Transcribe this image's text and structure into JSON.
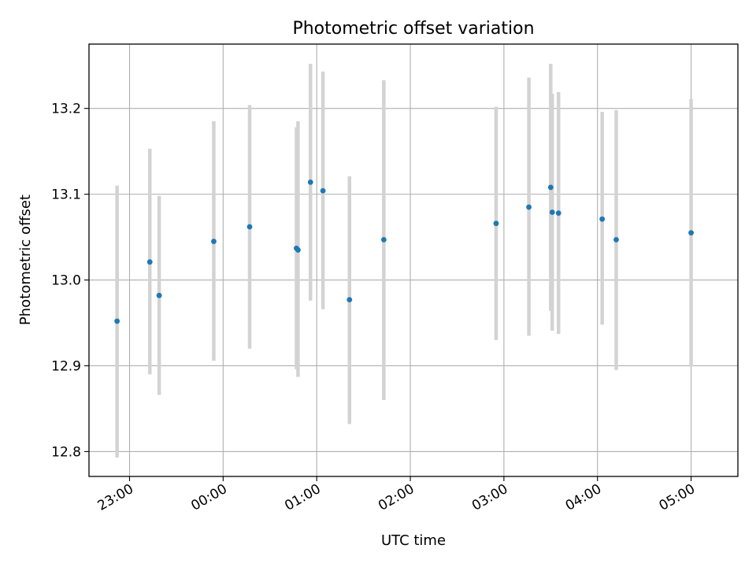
{
  "chart_data": {
    "type": "scatter",
    "title": "Photometric offset variation",
    "xlabel": "UTC time",
    "ylabel": "Photometric offset",
    "xlim": [
      "22:34",
      "05:30"
    ],
    "ylim": [
      12.771,
      13.275
    ],
    "x_ticks": [
      "23:00",
      "00:00",
      "01:00",
      "02:00",
      "03:00",
      "04:00",
      "05:00"
    ],
    "y_ticks": [
      12.8,
      12.9,
      13.0,
      13.1,
      13.2
    ],
    "grid": true,
    "marker_color": "#1f77b4",
    "errorbar_color": "#d3d3d3",
    "points": [
      {
        "time": "22:52",
        "value": 12.952,
        "err_low": 12.793,
        "err_high": 13.11
      },
      {
        "time": "23:13",
        "value": 13.021,
        "err_low": 12.89,
        "err_high": 13.153
      },
      {
        "time": "23:19",
        "value": 12.982,
        "err_low": 12.866,
        "err_high": 13.098
      },
      {
        "time": "23:54",
        "value": 13.045,
        "err_low": 12.906,
        "err_high": 13.185
      },
      {
        "time": "00:17",
        "value": 13.062,
        "err_low": 12.92,
        "err_high": 13.204
      },
      {
        "time": "00:47",
        "value": 13.037,
        "err_low": 12.896,
        "err_high": 13.178
      },
      {
        "time": "00:48",
        "value": 13.035,
        "err_low": 12.887,
        "err_high": 13.185
      },
      {
        "time": "00:56",
        "value": 13.114,
        "err_low": 12.976,
        "err_high": 13.252
      },
      {
        "time": "01:04",
        "value": 13.104,
        "err_low": 12.966,
        "err_high": 13.243
      },
      {
        "time": "01:21",
        "value": 12.977,
        "err_low": 12.832,
        "err_high": 13.121
      },
      {
        "time": "01:43",
        "value": 13.047,
        "err_low": 12.86,
        "err_high": 13.233
      },
      {
        "time": "02:55",
        "value": 13.066,
        "err_low": 12.93,
        "err_high": 13.202
      },
      {
        "time": "03:16",
        "value": 13.085,
        "err_low": 12.935,
        "err_high": 13.236
      },
      {
        "time": "03:30",
        "value": 13.108,
        "err_low": 12.964,
        "err_high": 13.252
      },
      {
        "time": "03:31",
        "value": 13.079,
        "err_low": 12.941,
        "err_high": 13.217
      },
      {
        "time": "03:35",
        "value": 13.078,
        "err_low": 12.937,
        "err_high": 13.219
      },
      {
        "time": "04:03",
        "value": 13.071,
        "err_low": 12.948,
        "err_high": 13.196
      },
      {
        "time": "04:12",
        "value": 13.047,
        "err_low": 12.895,
        "err_high": 13.198
      },
      {
        "time": "05:00",
        "value": 13.055,
        "err_low": 12.899,
        "err_high": 13.211
      }
    ]
  }
}
